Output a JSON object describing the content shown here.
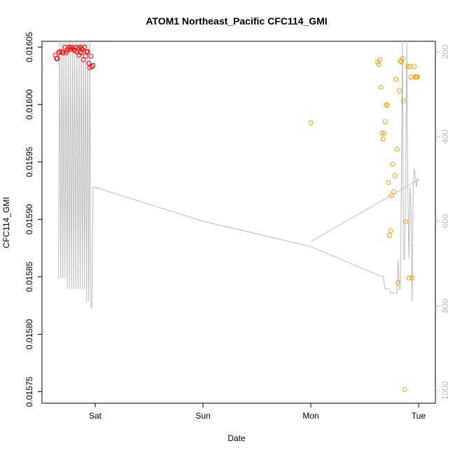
{
  "chart_data": {
    "type": "scatter",
    "title": "ATOM1 Northeast_Pacific CFC114_GMI",
    "xlabel": "Date",
    "ylabel": "CFC114_GMI",
    "x_ticks": [
      "Sat",
      "Sun",
      "Mon",
      "Tue"
    ],
    "ylim": [
      0.01574,
      0.016055
    ],
    "y_ticks": [
      "0.01575",
      "0.01580",
      "0.01585",
      "0.01590",
      "0.01595",
      "0.01600",
      "0.01605"
    ],
    "y2lim": [
      1030,
      175
    ],
    "y2_ticks": [
      "200",
      "400",
      "600",
      "800",
      "1000"
    ],
    "grid": false,
    "colors": {
      "series_red": "#ff0000",
      "series_orange": "#ff9900",
      "altitude_line": "#bbbbbb",
      "right_axis": "#bbbbbb"
    },
    "series": [
      {
        "color": "#ff0000",
        "x": [
          -0.37,
          -0.36,
          -0.35,
          -0.34,
          -0.33,
          -0.31,
          -0.3,
          -0.28,
          -0.27,
          -0.26,
          -0.25,
          -0.24,
          -0.23,
          -0.22,
          -0.21,
          -0.2,
          -0.19,
          -0.18,
          -0.17,
          -0.16,
          -0.15,
          -0.14,
          -0.14,
          -0.13,
          -0.13,
          -0.12,
          -0.11,
          -0.1,
          -0.09,
          -0.08,
          -0.07,
          -0.06,
          -0.05,
          -0.04,
          -0.03,
          -0.02
        ],
        "y": [
          0.016043,
          0.01604,
          0.01604,
          0.016045,
          0.016046,
          0.016046,
          0.016045,
          0.01605,
          0.016045,
          0.016047,
          0.016049,
          0.01605,
          0.016048,
          0.01605,
          0.016049,
          0.016048,
          0.016047,
          0.01605,
          0.016046,
          0.016049,
          0.016043,
          0.01605,
          0.016046,
          0.016049,
          0.016045,
          0.016048,
          0.016039,
          0.01605,
          0.016042,
          0.016046,
          0.016046,
          0.016036,
          0.016032,
          0.016042,
          0.016033,
          0.016034
        ]
      },
      {
        "color": "#ff9900",
        "x": [
          2.0,
          2.62,
          2.63,
          2.64,
          2.65,
          2.66,
          2.67,
          2.68,
          2.69,
          2.7,
          2.71,
          2.72,
          2.73,
          2.74,
          2.75,
          2.76,
          2.77,
          2.78,
          2.79,
          2.8,
          2.81,
          2.82,
          2.83,
          2.84,
          2.85,
          2.86,
          2.87,
          2.88,
          2.9,
          2.91,
          2.92,
          2.93,
          2.94,
          2.96,
          2.97,
          2.98,
          2.98,
          2.99
        ],
        "y": [
          0.015984,
          0.016037,
          0.016035,
          0.016039,
          0.016015,
          0.015975,
          0.01597,
          0.015975,
          0.015985,
          0.016,
          0.015999,
          0.015932,
          0.015886,
          0.01589,
          0.015921,
          0.015948,
          0.015924,
          0.015938,
          0.016022,
          0.015961,
          0.015845,
          0.016012,
          0.016038,
          0.016037,
          0.01604,
          0.016003,
          0.015752,
          0.015898,
          0.016033,
          0.015849,
          0.016033,
          0.016024,
          0.015849,
          0.016033,
          0.016024,
          0.016024,
          0.016024,
          0.016024
        ]
      }
    ],
    "altitude_line": {
      "x": [
        -0.35,
        -0.34,
        -0.33,
        -0.32,
        -0.31,
        -0.3,
        -0.29,
        -0.28,
        -0.27,
        -0.26,
        -0.25,
        -0.24,
        -0.23,
        -0.22,
        -0.21,
        -0.2,
        -0.19,
        -0.18,
        -0.17,
        -0.16,
        -0.15,
        -0.14,
        -0.13,
        -0.12,
        -0.11,
        -0.1,
        -0.09,
        -0.08,
        -0.07,
        -0.06,
        -0.05,
        -0.04,
        -0.03,
        -0.02,
        0.0,
        1.0,
        2.0,
        2.65,
        2.67,
        2.69,
        2.71,
        2.73,
        2.74,
        2.75,
        2.76,
        2.77,
        2.78,
        2.79,
        2.8,
        2.81,
        2.82,
        2.83,
        2.84,
        2.85,
        2.86,
        2.87,
        2.88,
        2.89,
        2.9,
        2.91,
        2.92,
        2.93,
        2.94,
        2.95,
        2.96,
        2.97,
        2.98,
        2.99,
        3.0
      ],
      "y": [
        735,
        735,
        175,
        735,
        175,
        735,
        175,
        735,
        175,
        760,
        175,
        760,
        175,
        760,
        175,
        760,
        175,
        760,
        175,
        760,
        175,
        760,
        175,
        760,
        175,
        760,
        175,
        790,
        175,
        790,
        175,
        805,
        805,
        520,
        520,
        600,
        660,
        730,
        730,
        760,
        760,
        760,
        770,
        770,
        770,
        770,
        770,
        770,
        770,
        690,
        760,
        760,
        520,
        175,
        690,
        690,
        520,
        175,
        520,
        690,
        520,
        570,
        790,
        520,
        475,
        500,
        520,
        500,
        500
      ]
    },
    "altitude_line2": {
      "x": [
        2.0,
        3.0
      ],
      "y": [
        648,
        502
      ]
    }
  }
}
